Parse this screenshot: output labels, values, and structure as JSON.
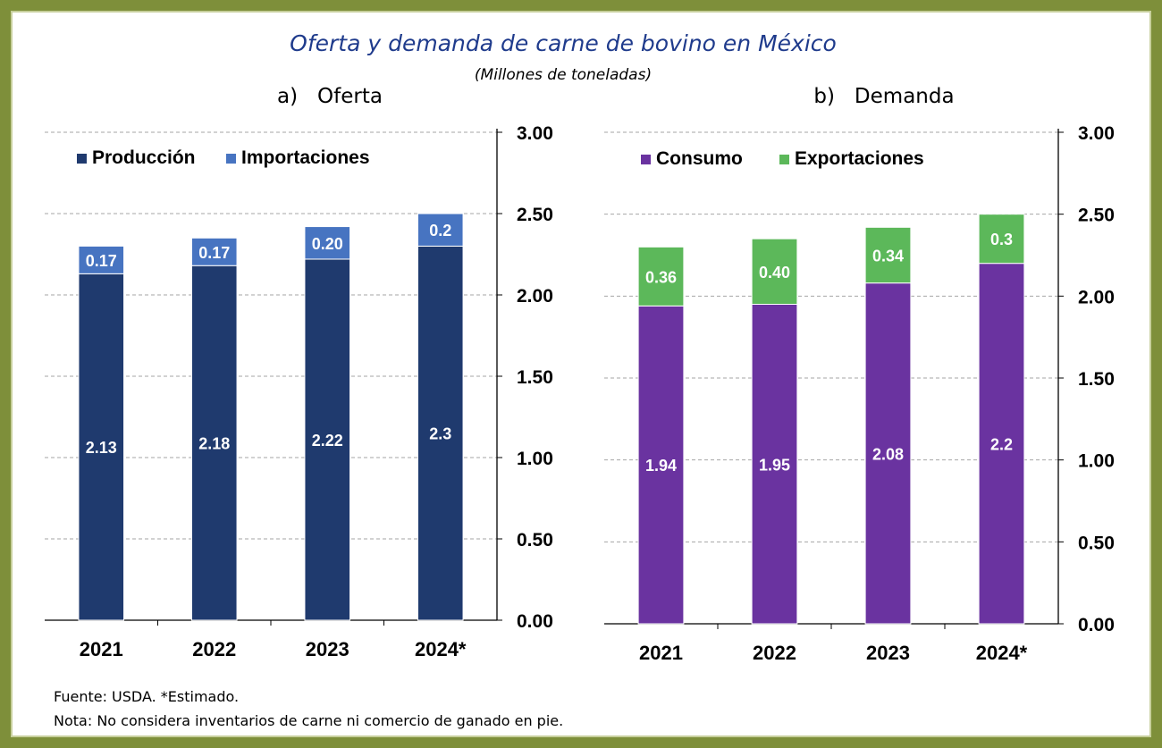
{
  "title": "Oferta y demanda de carne de bovino en México",
  "subtitle": "(Millones de toneladas)",
  "footer": {
    "source": "Fuente: USDA. *Estimado.",
    "note": "Nota: No considera inventarios de carne ni comercio de ganado en pie."
  },
  "colors": {
    "produccion": "#1f3a6e",
    "importaciones": "#4774c1",
    "consumo": "#6a33a0",
    "exportaciones": "#5cb85a",
    "frame": "#7e8f3a"
  },
  "chart_data": [
    {
      "type": "bar",
      "stacked": true,
      "panel_title": "a)   Oferta",
      "categories": [
        "2021",
        "2022",
        "2023",
        "2024*"
      ],
      "series": [
        {
          "name": "Producción",
          "values": [
            2.13,
            2.18,
            2.22,
            2.3
          ],
          "labels": [
            "2.13",
            "2.18",
            "2.22",
            "2.3"
          ]
        },
        {
          "name": "Importaciones",
          "values": [
            0.17,
            0.17,
            0.2,
            0.2
          ],
          "labels": [
            "0.17",
            "0.17",
            "0.20",
            "0.2"
          ]
        }
      ],
      "ylim": [
        0,
        3
      ],
      "yticks": [
        "0.00",
        "0.50",
        "1.00",
        "1.50",
        "2.00",
        "2.50",
        "3.00"
      ],
      "y_axis_side": "right",
      "legend": "top-left",
      "grid": true
    },
    {
      "type": "bar",
      "stacked": true,
      "panel_title": "b)   Demanda",
      "categories": [
        "2021",
        "2022",
        "2023",
        "2024*"
      ],
      "series": [
        {
          "name": "Consumo",
          "values": [
            1.94,
            1.95,
            2.08,
            2.2
          ],
          "labels": [
            "1.94",
            "1.95",
            "2.08",
            "2.2"
          ]
        },
        {
          "name": "Exportaciones",
          "values": [
            0.36,
            0.4,
            0.34,
            0.3
          ],
          "labels": [
            "0.36",
            "0.40",
            "0.34",
            "0.3"
          ]
        }
      ],
      "ylim": [
        0,
        3
      ],
      "yticks": [
        "0.00",
        "0.50",
        "1.00",
        "1.50",
        "2.00",
        "2.50",
        "3.00"
      ],
      "y_axis_side": "right",
      "legend": "top-left",
      "grid": true
    }
  ]
}
